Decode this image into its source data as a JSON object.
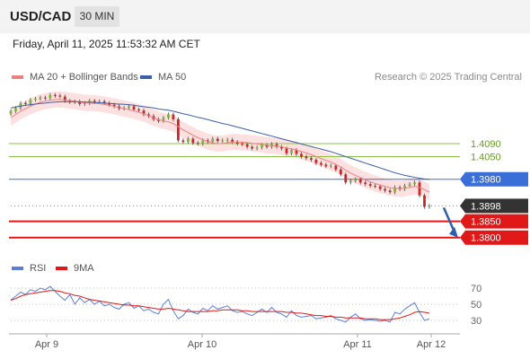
{
  "header": {
    "pair": "USD/CAD",
    "timeframe": "30 MIN"
  },
  "datetime": "Friday, April 11, 2025 11:53:32 AM CET",
  "legend": {
    "ma20": "MA 20 + Bollinger Bands",
    "ma50": "MA 50",
    "copyright": "Research © 2025 Trading Central"
  },
  "rsi_legend": {
    "rsi": "RSI",
    "ma9": "9MA"
  },
  "colors": {
    "ma20": "#f08080",
    "ma50": "#3b5fa8",
    "band_fill": "#fde0e0",
    "candle_up": "#7cb342",
    "candle_down": "#c62828",
    "resistance": "#8bc34a",
    "pivot": "#3b6fd8",
    "support": "#e01818",
    "current": "#333333",
    "rsi": "#5b7fd8",
    "rsi_ma": "#e01818",
    "arrow": "#2f5fa8"
  },
  "chart_data": [
    {
      "type": "candlestick",
      "title": "USD/CAD",
      "x_labels": [
        "Apr 9",
        "Apr 10",
        "Apr 11",
        "Apr 12"
      ],
      "price_levels": [
        {
          "label": "1.4090",
          "value": 1.409,
          "role": "resistance"
        },
        {
          "label": "1.4050",
          "value": 1.405,
          "role": "resistance"
        },
        {
          "label": "1.3980",
          "value": 1.398,
          "role": "pivot"
        },
        {
          "label": "1.3898",
          "value": 1.3898,
          "role": "current"
        },
        {
          "label": "1.3850",
          "value": 1.385,
          "role": "support"
        },
        {
          "label": "1.3800",
          "value": 1.38,
          "role": "support"
        }
      ],
      "ylim": [
        1.373,
        1.427
      ],
      "close": [
        1.419,
        1.42,
        1.4215,
        1.4212,
        1.4225,
        1.4228,
        1.4232,
        1.423,
        1.424,
        1.4238,
        1.4235,
        1.4222,
        1.4218,
        1.422,
        1.4212,
        1.4215,
        1.4222,
        1.4218,
        1.422,
        1.4215,
        1.421,
        1.4205,
        1.4198,
        1.42,
        1.4205,
        1.4195,
        1.4192,
        1.418,
        1.4175,
        1.4165,
        1.416,
        1.417,
        1.418,
        1.4165,
        1.41,
        1.4095,
        1.4105,
        1.4092,
        1.409,
        1.41,
        1.4095,
        1.4105,
        1.4098,
        1.41,
        1.4102,
        1.4095,
        1.409,
        1.4088,
        1.408,
        1.4075,
        1.4078,
        1.4085,
        1.408,
        1.4088,
        1.408,
        1.4075,
        1.406,
        1.407,
        1.4058,
        1.405,
        1.4045,
        1.404,
        1.403,
        1.4025,
        1.402,
        1.4022,
        1.401,
        1.3995,
        1.397,
        1.3975,
        1.398,
        1.397,
        1.3965,
        1.396,
        1.3958,
        1.395,
        1.3945,
        1.394,
        1.3955,
        1.395,
        1.396,
        1.3965,
        1.397,
        1.393,
        1.3895,
        1.3898
      ],
      "ma20": [
        1.417,
        1.418,
        1.419,
        1.4198,
        1.4205,
        1.4212,
        1.4217,
        1.4221,
        1.4224,
        1.4226,
        1.4226,
        1.4225,
        1.4223,
        1.4221,
        1.4218,
        1.4216,
        1.4215,
        1.4214,
        1.4213,
        1.4211,
        1.4208,
        1.4205,
        1.4201,
        1.4198,
        1.4195,
        1.4191,
        1.4187,
        1.4182,
        1.4176,
        1.417,
        1.4164,
        1.416,
        1.4157,
        1.4152,
        1.4142,
        1.4132,
        1.4124,
        1.4116,
        1.4108,
        1.4102,
        1.4096,
        1.4092,
        1.409,
        1.409,
        1.4093,
        1.4095,
        1.4095,
        1.4094,
        1.4093,
        1.4091,
        1.4089,
        1.4087,
        1.4085,
        1.4084,
        1.4082,
        1.408,
        1.4077,
        1.4074,
        1.407,
        1.4066,
        1.4061,
        1.4056,
        1.405,
        1.4044,
        1.4038,
        1.4033,
        1.4026,
        1.4018,
        1.4008,
        1.3999,
        1.3992,
        1.3985,
        1.3978,
        1.3972,
        1.3967,
        1.3962,
        1.3958,
        1.3954,
        1.3952,
        1.3951,
        1.3952,
        1.3955,
        1.3958,
        1.3955,
        1.3948,
        1.394
      ],
      "ma50": [
        1.42,
        1.4203,
        1.4206,
        1.4208,
        1.421,
        1.4212,
        1.4214,
        1.4215,
        1.4217,
        1.4218,
        1.4219,
        1.4219,
        1.4219,
        1.4219,
        1.4219,
        1.4218,
        1.4218,
        1.4217,
        1.4216,
        1.4215,
        1.4214,
        1.4213,
        1.4212,
        1.4211,
        1.421,
        1.4208,
        1.4206,
        1.4204,
        1.4202,
        1.42,
        1.4197,
        1.4195,
        1.4193,
        1.419,
        1.4186,
        1.4182,
        1.4179,
        1.4175,
        1.4171,
        1.4168,
        1.4164,
        1.416,
        1.4156,
        1.4152,
        1.4149,
        1.4145,
        1.4141,
        1.4137,
        1.4133,
        1.4129,
        1.4125,
        1.4121,
        1.4117,
        1.4113,
        1.4109,
        1.4105,
        1.4101,
        1.4097,
        1.4093,
        1.4089,
        1.4085,
        1.4081,
        1.4077,
        1.4073,
        1.4069,
        1.4065,
        1.406,
        1.4055,
        1.405,
        1.4045,
        1.404,
        1.4035,
        1.403,
        1.4025,
        1.402,
        1.4015,
        1.401,
        1.4005,
        1.4,
        1.3996,
        1.3992,
        1.3989,
        1.3986,
        1.3983,
        1.3981,
        1.398
      ],
      "band_width": 0.0025,
      "forecast_target": 1.38
    },
    {
      "type": "line",
      "title": "RSI",
      "series": [
        {
          "name": "RSI"
        },
        {
          "name": "9MA"
        }
      ],
      "y_ticks": [
        70,
        50,
        30
      ],
      "ylim": [
        20,
        80
      ],
      "rsi": [
        55,
        60,
        65,
        62,
        68,
        66,
        70,
        68,
        72,
        66,
        60,
        55,
        62,
        50,
        58,
        52,
        56,
        50,
        54,
        48,
        50,
        46,
        44,
        50,
        52,
        45,
        48,
        42,
        44,
        40,
        38,
        50,
        56,
        42,
        32,
        36,
        44,
        40,
        38,
        45,
        42,
        48,
        44,
        46,
        48,
        42,
        40,
        41,
        38,
        36,
        40,
        44,
        40,
        46,
        40,
        38,
        34,
        42,
        36,
        34,
        35,
        36,
        32,
        33,
        34,
        36,
        32,
        30,
        28,
        34,
        38,
        32,
        30,
        31,
        30,
        29,
        30,
        28,
        40,
        38,
        44,
        48,
        52,
        40,
        30,
        32
      ],
      "ma9": [
        55,
        57,
        60,
        62,
        63,
        64,
        65,
        66,
        67,
        67,
        66,
        64,
        63,
        61,
        60,
        58,
        56,
        55,
        54,
        53,
        52,
        51,
        50,
        49,
        49,
        48,
        48,
        47,
        46,
        45,
        44,
        44,
        45,
        44,
        43,
        42,
        41,
        41,
        41,
        41,
        41,
        42,
        42,
        43,
        43,
        43,
        43,
        42,
        42,
        41,
        41,
        41,
        41,
        41,
        41,
        41,
        40,
        40,
        39,
        39,
        38,
        37,
        36,
        36,
        35,
        35,
        34,
        34,
        33,
        33,
        33,
        33,
        32,
        32,
        32,
        31,
        31,
        31,
        32,
        33,
        35,
        37,
        40,
        41,
        40,
        39
      ]
    }
  ]
}
